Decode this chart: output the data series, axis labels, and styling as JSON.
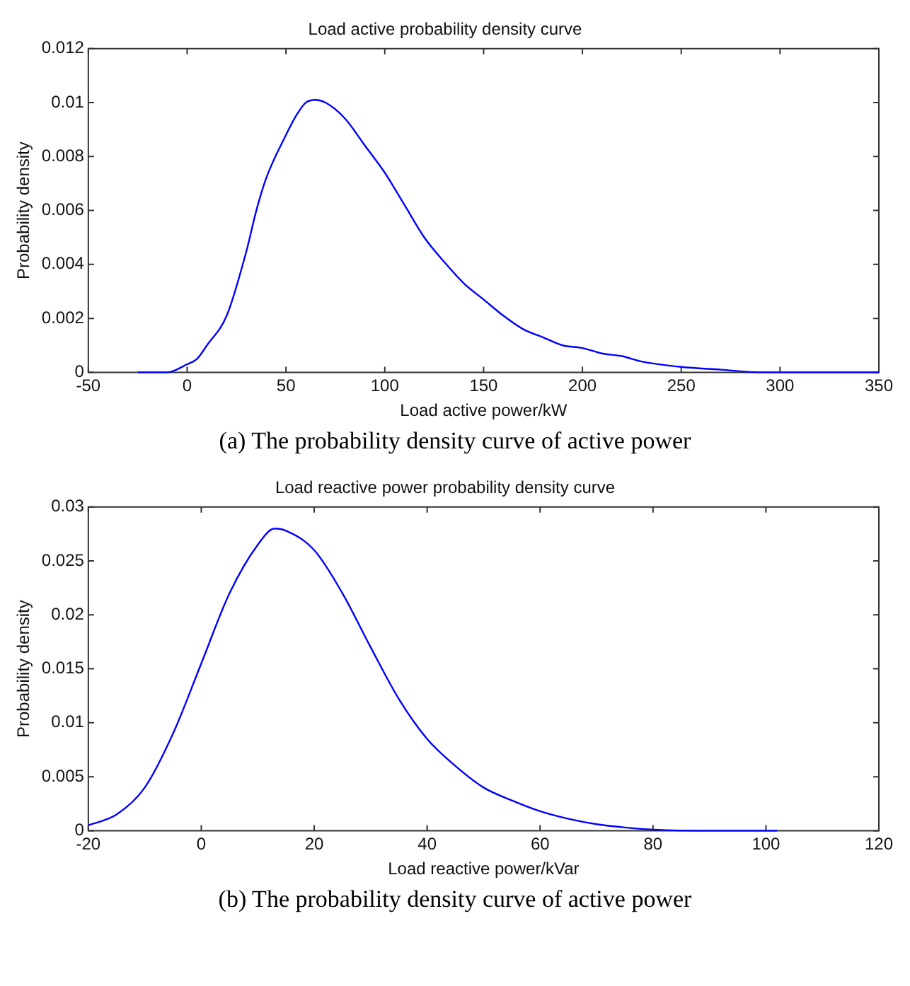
{
  "chart_data": [
    {
      "type": "line",
      "title": "Load active probability density curve",
      "xlabel": "Load active power/kW",
      "ylabel": "Probability density",
      "annotations": [
        "(a) The probability density curve of active power"
      ],
      "xlim": [
        -50,
        350
      ],
      "xticks": [
        -50,
        0,
        50,
        100,
        150,
        200,
        250,
        300,
        350
      ],
      "ylim": [
        0,
        0.012
      ],
      "yticks": [
        0,
        0.002,
        0.004,
        0.006,
        0.008,
        0.01,
        0.012
      ],
      "grid": false,
      "legend": false,
      "marker": "none",
      "line_style": "solid",
      "series": [
        {
          "color": "#0000ff",
          "x": [
            -25,
            -10,
            0,
            5,
            10,
            20,
            30,
            35,
            40,
            50,
            55,
            60,
            65,
            70,
            80,
            90,
            100,
            110,
            120,
            130,
            140,
            150,
            160,
            170,
            180,
            190,
            200,
            210,
            220,
            230,
            250,
            270,
            290,
            350
          ],
          "values": [
            0,
            0,
            0.0003,
            0.0005,
            0.001,
            0.0021,
            0.0045,
            0.006,
            0.0072,
            0.0088,
            0.0095,
            0.01,
            0.0101,
            0.01,
            0.0094,
            0.0084,
            0.0074,
            0.0062,
            0.005,
            0.0041,
            0.0033,
            0.0027,
            0.0021,
            0.0016,
            0.0013,
            0.001,
            0.0009,
            0.0007,
            0.0006,
            0.0004,
            0.0002,
            0.0001,
            0,
            0
          ]
        }
      ]
    },
    {
      "type": "line",
      "title": "Load reactive power probability density curve",
      "xlabel": "Load reactive power/kVar",
      "ylabel": "Probability density",
      "annotations": [
        "(b) The probability density curve of active power"
      ],
      "xlim": [
        -20,
        120
      ],
      "xticks": [
        -20,
        0,
        20,
        40,
        60,
        80,
        100,
        120
      ],
      "ylim": [
        0,
        0.03
      ],
      "yticks": [
        0,
        0.005,
        0.01,
        0.015,
        0.02,
        0.025,
        0.03
      ],
      "grid": false,
      "legend": false,
      "marker": "none",
      "line_style": "solid",
      "series": [
        {
          "color": "#0000ff",
          "x": [
            -20,
            -15,
            -10,
            -5,
            0,
            5,
            10,
            13,
            15,
            20,
            25,
            30,
            35,
            40,
            45,
            50,
            55,
            60,
            65,
            70,
            75,
            80,
            90,
            102
          ],
          "values": [
            0.0005,
            0.0015,
            0.004,
            0.009,
            0.0155,
            0.022,
            0.0265,
            0.028,
            0.0278,
            0.026,
            0.022,
            0.017,
            0.0122,
            0.0085,
            0.006,
            0.004,
            0.0028,
            0.0018,
            0.0011,
            0.0006,
            0.0003,
            0.0001,
            0,
            0
          ]
        }
      ]
    }
  ]
}
